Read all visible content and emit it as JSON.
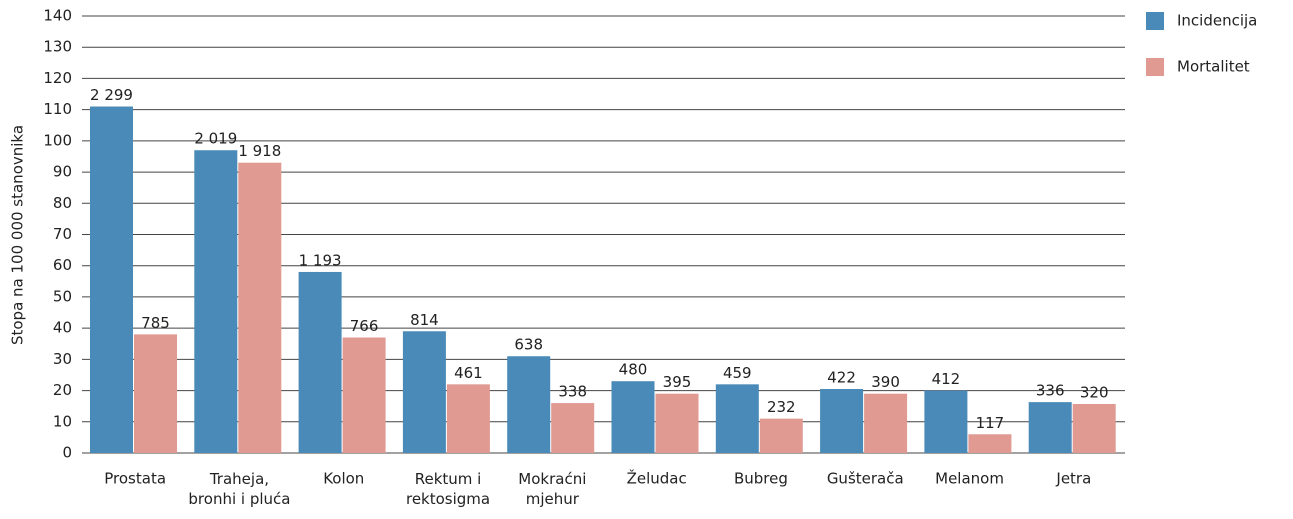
{
  "chart_data": {
    "type": "bar",
    "y_label": "Stopa na 100 000 stanovnika",
    "categories": [
      "Prostata",
      "Traheja,\nbronhi i pluća",
      "Kolon",
      "Rektum i\nrektosigma",
      "Mokraćni\nmjehur",
      "Želudac",
      "Bubreg",
      "Gušterača",
      "Melanom",
      "Jetra"
    ],
    "series": [
      {
        "name": "Incidencija",
        "color": "#4a8ab8",
        "values": [
          111,
          97,
          58,
          39,
          31,
          23,
          22,
          20.5,
          20,
          16.3
        ],
        "labels": [
          "2 299",
          "2 019",
          "1 193",
          "814",
          "638",
          "480",
          "459",
          "422",
          "412",
          "336"
        ]
      },
      {
        "name": "Mortalitet",
        "color": "#e09a92",
        "values": [
          38,
          93,
          37,
          22,
          16,
          19,
          11,
          19,
          6,
          15.7
        ],
        "labels": [
          "785",
          "1 918",
          "766",
          "461",
          "338",
          "395",
          "232",
          "390",
          "117",
          "320"
        ]
      }
    ],
    "ylim": [
      0,
      140
    ],
    "yticks": [
      0,
      10,
      20,
      30,
      40,
      50,
      60,
      70,
      80,
      90,
      100,
      110,
      120,
      130,
      140
    ],
    "grid": true,
    "legend": "right"
  }
}
